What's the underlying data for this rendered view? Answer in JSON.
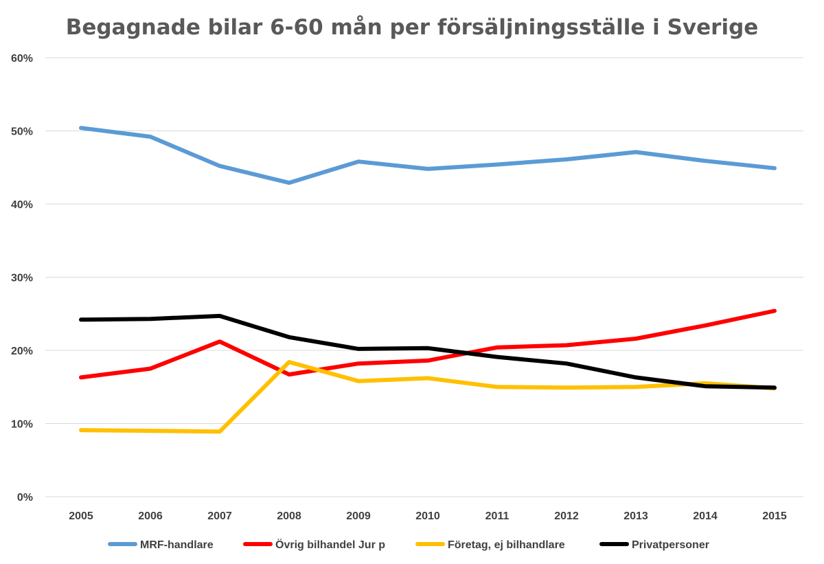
{
  "chart_data": {
    "type": "line",
    "title": "Begagnade bilar 6-60 mån per försäljningsställe i Sverige",
    "categories": [
      "2005",
      "2006",
      "2007",
      "2008",
      "2009",
      "2010",
      "2011",
      "2012",
      "2013",
      "2014",
      "2015"
    ],
    "ylim": [
      0,
      0.6
    ],
    "yticks": [
      {
        "value": 0,
        "label": "0%"
      },
      {
        "value": 0.1,
        "label": "10%"
      },
      {
        "value": 0.2,
        "label": "20%"
      },
      {
        "value": 0.3,
        "label": "30%"
      },
      {
        "value": 0.4,
        "label": "40%"
      },
      {
        "value": 0.5,
        "label": "50%"
      },
      {
        "value": 0.6,
        "label": "60%"
      }
    ],
    "grid": true,
    "legend_position": "bottom",
    "series": [
      {
        "name": "MRF-handlare",
        "color": "#5b9bd5",
        "values": [
          0.504,
          0.492,
          0.452,
          0.429,
          0.458,
          0.448,
          0.454,
          0.461,
          0.471,
          0.459,
          0.449
        ]
      },
      {
        "name": "Övrig bilhandel Jur p",
        "color": "#ff0000",
        "values": [
          0.163,
          0.175,
          0.212,
          0.167,
          0.182,
          0.186,
          0.204,
          0.207,
          0.216,
          0.234,
          0.254
        ]
      },
      {
        "name": "Företag, ej bilhandlare",
        "color": "#ffc000",
        "values": [
          0.091,
          0.09,
          0.089,
          0.184,
          0.158,
          0.162,
          0.15,
          0.149,
          0.15,
          0.155,
          0.148
        ]
      },
      {
        "name": "Privatpersoner",
        "color": "#000000",
        "values": [
          0.242,
          0.243,
          0.247,
          0.218,
          0.202,
          0.203,
          0.191,
          0.182,
          0.163,
          0.151,
          0.149
        ]
      }
    ]
  }
}
